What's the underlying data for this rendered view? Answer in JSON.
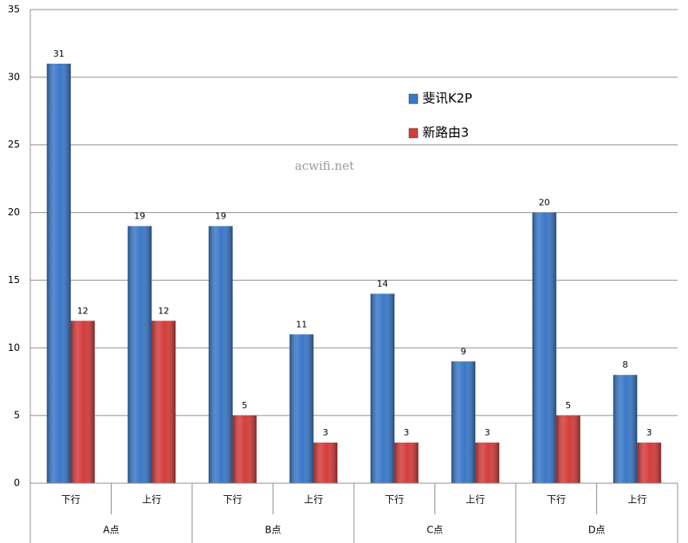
{
  "chart_data": {
    "type": "bar",
    "categories": [
      "下行",
      "上行",
      "下行",
      "上行",
      "下行",
      "上行",
      "下行",
      "上行"
    ],
    "category_groups": [
      "A点",
      "B点",
      "C点",
      "D点"
    ],
    "series": [
      {
        "name": "斐讯K2P",
        "color": "#3a78c8",
        "values": [
          31,
          19,
          19,
          11,
          14,
          9,
          20,
          8
        ]
      },
      {
        "name": "新路由3",
        "color": "#d43c3a",
        "values": [
          12,
          12,
          5,
          3,
          3,
          3,
          5,
          3
        ]
      }
    ],
    "ylim": [
      0,
      35
    ],
    "yticks": [
      0,
      5,
      10,
      15,
      20,
      25,
      30,
      35
    ],
    "grid": true,
    "watermark": "acwifi.net"
  }
}
